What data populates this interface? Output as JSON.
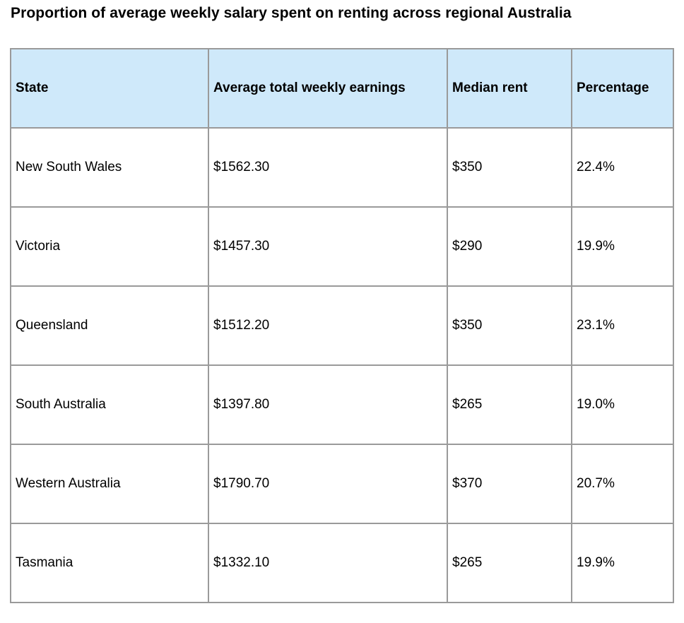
{
  "title": "Proportion of average weekly salary spent on renting across regional Australia",
  "colors": {
    "header_background": "#cfe9fa",
    "border": "#9a9a9a"
  },
  "chart_data": {
    "type": "table",
    "title": "Proportion of average weekly salary spent on renting across regional Australia",
    "columns": [
      "State",
      "Average total weekly earnings",
      "Median rent",
      "Percentage"
    ],
    "rows": [
      [
        "New South Wales",
        "$1562.30",
        "$350",
        "22.4%"
      ],
      [
        "Victoria",
        "$1457.30",
        "$290",
        "19.9%"
      ],
      [
        "Queensland",
        "$1512.20",
        "$350",
        "23.1%"
      ],
      [
        "South Australia",
        "$1397.80",
        "$265",
        "19.0%"
      ],
      [
        "Western Australia",
        "$1790.70",
        "$370",
        "20.7%"
      ],
      [
        "Tasmania",
        "$1332.10",
        "$265",
        "19.9%"
      ]
    ]
  }
}
